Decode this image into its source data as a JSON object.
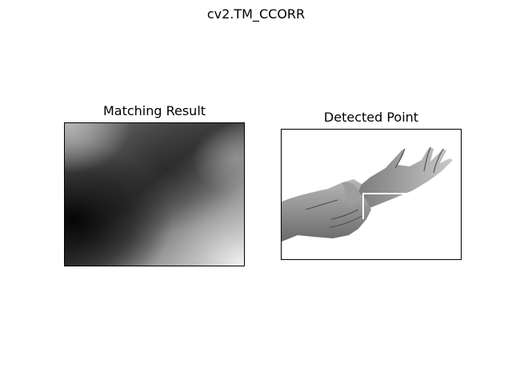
{
  "figure": {
    "suptitle": "cv2.TM_CCORR"
  },
  "chart_data": [
    {
      "type": "heatmap",
      "title": "Matching Result",
      "colormap": "gray",
      "axes_visible": false,
      "grid": false
    },
    {
      "type": "image",
      "title": "Detected Point",
      "colormap": "gray",
      "axes_visible": false,
      "grid": false,
      "annotation": "white rectangle outlining the matched template region"
    }
  ]
}
